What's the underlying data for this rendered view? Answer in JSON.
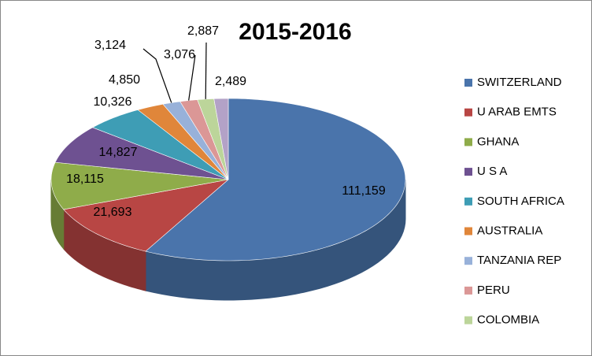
{
  "chart_data": {
    "type": "pie",
    "title": "2015-2016",
    "categories": [
      "SWITZERLAND",
      "U ARAB EMTS",
      "GHANA",
      "U S A",
      "SOUTH AFRICA",
      "AUSTRALIA",
      "TANZANIA REP",
      "PERU",
      "COLOMBIA",
      null
    ],
    "values": [
      111159,
      21693,
      18115,
      14827,
      10326,
      4850,
      3124,
      3076,
      2887,
      2489
    ],
    "value_labels": [
      "111,159",
      "21,693",
      "18,115",
      "14,827",
      "10,326",
      "4,850",
      "3,124",
      "3,076",
      "2,887",
      "2,489"
    ],
    "colors": [
      "#4a74ab",
      "#b84644",
      "#8fac4a",
      "#6e5191",
      "#3e9db5",
      "#e0863a",
      "#98b1d9",
      "#db9796",
      "#bcd59a",
      "#b3a2c7"
    ],
    "legend": "right"
  }
}
